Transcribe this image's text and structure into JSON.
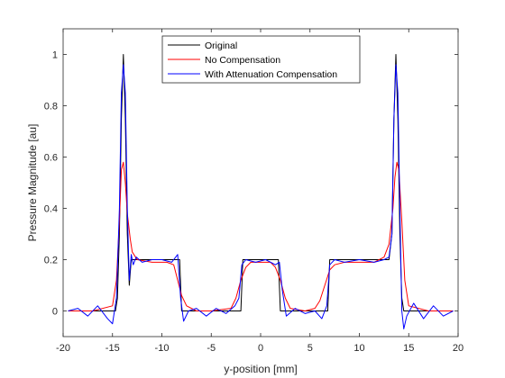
{
  "chart_data": {
    "type": "line",
    "title": "",
    "xlabel": "y-position [mm]",
    "ylabel": "Pressure Magnitude [au]",
    "xlim": [
      -20,
      20
    ],
    "ylim": [
      -0.1,
      1.1
    ],
    "xticks": [
      -20,
      -15,
      -10,
      -5,
      0,
      5,
      10,
      15,
      20
    ],
    "yticks": [
      0,
      0.2,
      0.4,
      0.6,
      0.8,
      1
    ],
    "xtick_labels": [
      "-20",
      "-15",
      "-10",
      "-5",
      "0",
      "5",
      "10",
      "15",
      "20"
    ],
    "ytick_labels": [
      "0",
      "0.2",
      "0.4",
      "0.6",
      "0.8",
      "1"
    ],
    "grid": false,
    "legend_position": "top-center",
    "series": [
      {
        "name": "Original",
        "color": "#000000",
        "x": [
          -19.5,
          -14.7,
          -14.5,
          -14.3,
          -14.1,
          -13.9,
          -13.7,
          -13.5,
          -13.3,
          -13.1,
          -13.0,
          -8.2,
          -8.0,
          -2.0,
          -1.8,
          1.8,
          2.0,
          6.8,
          7.0,
          12.8,
          13.0,
          13.3,
          13.5,
          13.7,
          13.9,
          14.1,
          14.3,
          14.5,
          19.5
        ],
        "y": [
          0,
          0,
          0.05,
          0.3,
          0.75,
          1.0,
          0.75,
          0.3,
          0.1,
          0.2,
          0.2,
          0.2,
          0,
          0,
          0.2,
          0.2,
          0,
          0,
          0.2,
          0.2,
          0.2,
          0.3,
          0.75,
          1.0,
          0.75,
          0.3,
          0.05,
          0,
          0
        ]
      },
      {
        "name": "No Compensation",
        "color": "#ff0000",
        "x": [
          -19.5,
          -17.0,
          -15.0,
          -14.6,
          -14.3,
          -14.1,
          -13.9,
          -13.7,
          -13.5,
          -13.2,
          -13.0,
          -12.5,
          -11.0,
          -9.5,
          -8.8,
          -8.4,
          -8.0,
          -7.5,
          -6.5,
          -5.0,
          -3.0,
          -2.5,
          -2.0,
          -1.5,
          -1.0,
          0.0,
          1.0,
          1.5,
          2.0,
          2.5,
          3.0,
          4.5,
          5.5,
          6.0,
          6.5,
          7.0,
          7.5,
          8.5,
          10.0,
          11.5,
          12.5,
          13.0,
          13.4,
          13.6,
          13.8,
          14.0,
          14.3,
          14.6,
          15.0,
          17.0,
          19.5
        ],
        "y": [
          0,
          0,
          0.02,
          0.12,
          0.35,
          0.55,
          0.58,
          0.5,
          0.38,
          0.28,
          0.23,
          0.2,
          0.19,
          0.19,
          0.18,
          0.12,
          0.06,
          0.02,
          0.0,
          0.0,
          0.01,
          0.05,
          0.12,
          0.17,
          0.19,
          0.19,
          0.19,
          0.17,
          0.12,
          0.05,
          0.01,
          0.0,
          0.01,
          0.04,
          0.1,
          0.16,
          0.18,
          0.19,
          0.19,
          0.19,
          0.21,
          0.26,
          0.4,
          0.52,
          0.58,
          0.55,
          0.35,
          0.12,
          0.02,
          0,
          0
        ]
      },
      {
        "name": "With Attenuation Compensation",
        "color": "#0000ff",
        "x": [
          -19.5,
          -18.5,
          -17.5,
          -16.5,
          -15.5,
          -15.0,
          -14.6,
          -14.3,
          -14.1,
          -13.9,
          -13.7,
          -13.5,
          -13.3,
          -13.1,
          -12.9,
          -12.6,
          -12.0,
          -11.0,
          -10.0,
          -9.0,
          -8.4,
          -8.1,
          -7.8,
          -7.3,
          -6.5,
          -5.5,
          -4.5,
          -3.5,
          -2.6,
          -2.2,
          -1.9,
          -1.5,
          -0.5,
          0.5,
          1.5,
          1.9,
          2.2,
          2.6,
          3.5,
          4.5,
          5.5,
          6.2,
          6.7,
          7.0,
          7.5,
          8.5,
          10.0,
          11.5,
          12.5,
          13.0,
          13.3,
          13.5,
          13.7,
          13.9,
          14.1,
          14.3,
          14.5,
          14.8,
          15.5,
          16.5,
          17.5,
          18.5,
          19.5
        ],
        "y": [
          0,
          0.01,
          -0.02,
          0.02,
          -0.03,
          -0.05,
          0.05,
          0.4,
          0.85,
          0.96,
          0.85,
          0.4,
          0.12,
          0.22,
          0.18,
          0.21,
          0.19,
          0.2,
          0.2,
          0.19,
          0.22,
          0.05,
          -0.04,
          0.0,
          0.01,
          -0.02,
          0.01,
          -0.01,
          0.02,
          0.05,
          0.18,
          0.2,
          0.19,
          0.2,
          0.18,
          0.19,
          0.08,
          -0.02,
          0.01,
          -0.01,
          0.0,
          -0.03,
          0.02,
          0.18,
          0.2,
          0.19,
          0.2,
          0.19,
          0.2,
          0.21,
          0.3,
          0.75,
          0.96,
          0.85,
          0.4,
          0.0,
          -0.07,
          -0.02,
          0.03,
          -0.03,
          0.02,
          -0.02,
          0
        ]
      }
    ]
  }
}
